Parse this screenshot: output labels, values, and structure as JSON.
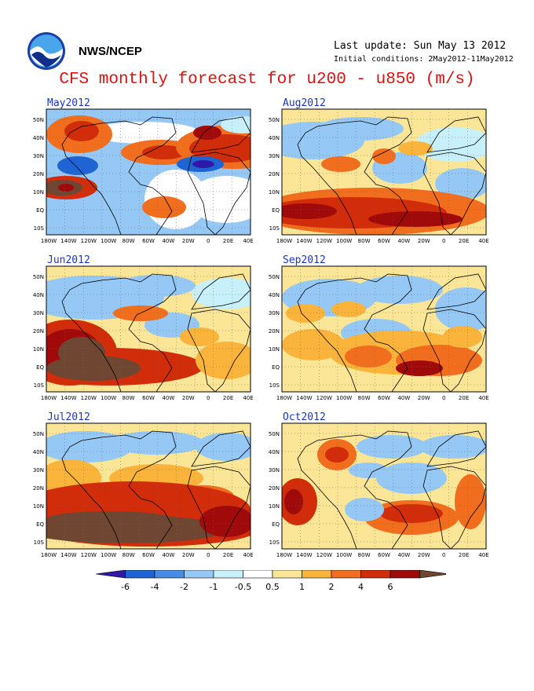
{
  "header": {
    "agency": "NWS/NCEP",
    "last_update": "Last update: Sun May 13 2012",
    "initial_conditions": "Initial conditions: 2May2012-11May2012",
    "title": "CFS monthly forecast for u200 - u850 (m/s)"
  },
  "colors": {
    "title": "#dd1111",
    "panel_title": "#1a33cc",
    "levels": [
      "#3018a8",
      "#1e64d2",
      "#468ce6",
      "#96c8f5",
      "#c8f0fa",
      "#ffffff",
      "#fae696",
      "#fab43c",
      "#f06e1e",
      "#d22d0a",
      "#a00a0a",
      "#6e4632"
    ]
  },
  "chart_data": [
    {
      "type": "heatmap",
      "title": "May2012",
      "region": "180W-50E, 20S-55N"
    },
    {
      "type": "heatmap",
      "title": "Aug2012",
      "region": "180W-50E, 20S-55N"
    },
    {
      "type": "heatmap",
      "title": "Jun2012",
      "region": "180W-50E, 20S-55N"
    },
    {
      "type": "heatmap",
      "title": "Sep2012",
      "region": "180W-50E, 20S-55N"
    },
    {
      "type": "heatmap",
      "title": "Jul2012",
      "region": "180W-50E, 20S-55N"
    },
    {
      "type": "heatmap",
      "title": "Oct2012",
      "region": "180W-50E, 20S-55N"
    }
  ],
  "axes": {
    "x_ticks": [
      "180W",
      "140W",
      "120W",
      "100W",
      "80W",
      "60W",
      "40W",
      "20W",
      "0",
      "20E",
      "40E"
    ],
    "y_ticks": [
      "50N",
      "40N",
      "30N",
      "20N",
      "10N",
      "EQ",
      "10S"
    ]
  },
  "colorbar": {
    "labels": [
      "-6",
      "-4",
      "-2",
      "-1",
      "-0.5",
      "0.5",
      "1",
      "2",
      "4",
      "6"
    ]
  }
}
